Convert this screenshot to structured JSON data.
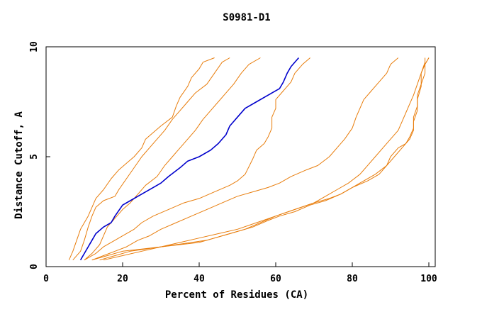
{
  "chart_data": {
    "type": "line",
    "title": "S0981-D1",
    "xlabel": "Percent of Residues (CA)",
    "ylabel": "Distance Cutoff, A",
    "xlim": [
      0,
      100
    ],
    "ylim": [
      0,
      10
    ],
    "xticks": [
      "0",
      "20",
      "40",
      "60",
      "80",
      "100"
    ],
    "yticks": [
      "0",
      "5",
      "10"
    ],
    "grid": false,
    "legend": "none",
    "colors": {
      "highlight": "#0000cc",
      "others": "#e87d0c"
    },
    "series": [
      {
        "highlight": false,
        "points": [
          [
            6,
            0.3
          ],
          [
            7,
            0.7
          ],
          [
            8,
            1.2
          ],
          [
            9,
            1.7
          ],
          [
            10,
            2.0
          ],
          [
            11,
            2.3
          ],
          [
            12,
            2.7
          ],
          [
            13,
            3.1
          ],
          [
            15,
            3.5
          ],
          [
            17,
            4.0
          ],
          [
            19,
            4.4
          ],
          [
            21,
            4.7
          ],
          [
            23,
            5.0
          ],
          [
            25,
            5.4
          ],
          [
            26,
            5.8
          ],
          [
            28,
            6.1
          ],
          [
            30,
            6.4
          ],
          [
            33,
            6.8
          ],
          [
            34,
            7.3
          ],
          [
            35,
            7.7
          ],
          [
            37,
            8.2
          ],
          [
            38,
            8.6
          ],
          [
            40,
            9.0
          ],
          [
            41,
            9.3
          ],
          [
            44,
            9.5
          ]
        ]
      },
      {
        "highlight": false,
        "points": [
          [
            7,
            0.3
          ],
          [
            9,
            0.7
          ],
          [
            10,
            1.2
          ],
          [
            11,
            1.8
          ],
          [
            12,
            2.3
          ],
          [
            13,
            2.7
          ],
          [
            15,
            3.0
          ],
          [
            18,
            3.2
          ],
          [
            19,
            3.5
          ],
          [
            21,
            4.0
          ],
          [
            23,
            4.5
          ],
          [
            25,
            5.0
          ],
          [
            27,
            5.4
          ],
          [
            29,
            5.8
          ],
          [
            31,
            6.2
          ],
          [
            33,
            6.7
          ],
          [
            35,
            7.1
          ],
          [
            37,
            7.5
          ],
          [
            39,
            7.9
          ],
          [
            42,
            8.3
          ],
          [
            44,
            8.8
          ],
          [
            46,
            9.3
          ],
          [
            48,
            9.5
          ]
        ]
      },
      {
        "highlight": false,
        "points": [
          [
            10,
            0.3
          ],
          [
            12,
            0.6
          ],
          [
            14,
            1.0
          ],
          [
            15,
            1.4
          ],
          [
            16,
            1.8
          ],
          [
            18,
            2.2
          ],
          [
            20,
            2.6
          ],
          [
            22,
            2.9
          ],
          [
            24,
            3.3
          ],
          [
            26,
            3.7
          ],
          [
            29,
            4.1
          ],
          [
            31,
            4.6
          ],
          [
            33,
            5.0
          ],
          [
            35,
            5.4
          ],
          [
            37,
            5.8
          ],
          [
            39,
            6.2
          ],
          [
            41,
            6.7
          ],
          [
            43,
            7.1
          ],
          [
            45,
            7.5
          ],
          [
            47,
            7.9
          ],
          [
            49,
            8.3
          ],
          [
            51,
            8.8
          ],
          [
            53,
            9.2
          ],
          [
            56,
            9.5
          ]
        ]
      },
      {
        "highlight": true,
        "points": [
          [
            9,
            0.3
          ],
          [
            10,
            0.6
          ],
          [
            11,
            0.9
          ],
          [
            12,
            1.2
          ],
          [
            13,
            1.5
          ],
          [
            15,
            1.8
          ],
          [
            17,
            2.0
          ],
          [
            18,
            2.3
          ],
          [
            20,
            2.8
          ],
          [
            22,
            3.0
          ],
          [
            25,
            3.3
          ],
          [
            28,
            3.6
          ],
          [
            30,
            3.8
          ],
          [
            32,
            4.1
          ],
          [
            35,
            4.5
          ],
          [
            37,
            4.8
          ],
          [
            40,
            5.0
          ],
          [
            43,
            5.3
          ],
          [
            45,
            5.6
          ],
          [
            47,
            6.0
          ],
          [
            48,
            6.4
          ],
          [
            50,
            6.8
          ],
          [
            52,
            7.2
          ],
          [
            55,
            7.5
          ],
          [
            58,
            7.8
          ],
          [
            61,
            8.1
          ],
          [
            62,
            8.4
          ],
          [
            63,
            8.8
          ],
          [
            64,
            9.1
          ],
          [
            66,
            9.5
          ]
        ]
      },
      {
        "highlight": false,
        "points": [
          [
            10,
            0.3
          ],
          [
            13,
            0.6
          ],
          [
            15,
            0.9
          ],
          [
            18,
            1.2
          ],
          [
            20,
            1.4
          ],
          [
            23,
            1.7
          ],
          [
            25,
            2.0
          ],
          [
            28,
            2.3
          ],
          [
            32,
            2.6
          ],
          [
            36,
            2.9
          ],
          [
            40,
            3.1
          ],
          [
            44,
            3.4
          ],
          [
            48,
            3.7
          ],
          [
            50,
            3.9
          ],
          [
            52,
            4.2
          ],
          [
            54,
            4.9
          ],
          [
            55,
            5.3
          ],
          [
            57,
            5.6
          ],
          [
            58,
            5.9
          ],
          [
            59,
            6.3
          ],
          [
            59,
            6.8
          ],
          [
            60,
            7.2
          ],
          [
            60,
            7.6
          ],
          [
            62,
            8.0
          ],
          [
            64,
            8.4
          ],
          [
            65,
            8.8
          ],
          [
            67,
            9.2
          ],
          [
            69,
            9.5
          ]
        ]
      },
      {
        "highlight": false,
        "points": [
          [
            12,
            0.3
          ],
          [
            15,
            0.5
          ],
          [
            18,
            0.7
          ],
          [
            21,
            0.9
          ],
          [
            24,
            1.2
          ],
          [
            27,
            1.4
          ],
          [
            30,
            1.7
          ],
          [
            34,
            2.0
          ],
          [
            38,
            2.3
          ],
          [
            42,
            2.6
          ],
          [
            46,
            2.9
          ],
          [
            50,
            3.2
          ],
          [
            54,
            3.4
          ],
          [
            58,
            3.6
          ],
          [
            61,
            3.8
          ],
          [
            64,
            4.1
          ],
          [
            68,
            4.4
          ],
          [
            71,
            4.6
          ],
          [
            74,
            5.0
          ],
          [
            76,
            5.4
          ],
          [
            78,
            5.8
          ],
          [
            80,
            6.3
          ],
          [
            81,
            6.8
          ],
          [
            82,
            7.2
          ],
          [
            83,
            7.6
          ],
          [
            85,
            8.0
          ],
          [
            87,
            8.4
          ],
          [
            89,
            8.8
          ],
          [
            90,
            9.2
          ],
          [
            92,
            9.5
          ]
        ]
      },
      {
        "highlight": false,
        "points": [
          [
            15,
            0.3
          ],
          [
            20,
            0.5
          ],
          [
            25,
            0.7
          ],
          [
            30,
            0.9
          ],
          [
            35,
            1.1
          ],
          [
            40,
            1.3
          ],
          [
            45,
            1.5
          ],
          [
            50,
            1.7
          ],
          [
            55,
            2.0
          ],
          [
            60,
            2.3
          ],
          [
            65,
            2.6
          ],
          [
            70,
            2.9
          ],
          [
            73,
            3.2
          ],
          [
            76,
            3.5
          ],
          [
            79,
            3.8
          ],
          [
            82,
            4.2
          ],
          [
            84,
            4.6
          ],
          [
            86,
            5.0
          ],
          [
            88,
            5.4
          ],
          [
            90,
            5.8
          ],
          [
            92,
            6.2
          ],
          [
            93,
            6.6
          ],
          [
            94,
            7.0
          ],
          [
            95,
            7.4
          ],
          [
            96,
            7.8
          ],
          [
            97,
            8.3
          ],
          [
            98,
            8.8
          ],
          [
            99,
            9.2
          ],
          [
            100,
            9.5
          ]
        ]
      },
      {
        "highlight": false,
        "points": [
          [
            12,
            0.3
          ],
          [
            16,
            0.5
          ],
          [
            20,
            0.7
          ],
          [
            25,
            0.8
          ],
          [
            30,
            0.9
          ],
          [
            35,
            1.0
          ],
          [
            40,
            1.1
          ],
          [
            44,
            1.3
          ],
          [
            48,
            1.5
          ],
          [
            52,
            1.7
          ],
          [
            56,
            2.0
          ],
          [
            60,
            2.3
          ],
          [
            65,
            2.6
          ],
          [
            70,
            2.9
          ],
          [
            74,
            3.1
          ],
          [
            77,
            3.3
          ],
          [
            80,
            3.6
          ],
          [
            84,
            3.9
          ],
          [
            87,
            4.2
          ],
          [
            89,
            4.6
          ],
          [
            90,
            5.0
          ],
          [
            92,
            5.4
          ],
          [
            94,
            5.6
          ],
          [
            95,
            5.9
          ],
          [
            96,
            6.3
          ],
          [
            96,
            6.8
          ],
          [
            97,
            7.3
          ],
          [
            97,
            7.8
          ],
          [
            98,
            8.3
          ],
          [
            99,
            8.8
          ],
          [
            99,
            9.2
          ],
          [
            100,
            9.5
          ]
        ]
      },
      {
        "highlight": false,
        "points": [
          [
            14,
            0.3
          ],
          [
            18,
            0.5
          ],
          [
            22,
            0.7
          ],
          [
            26,
            0.8
          ],
          [
            30,
            0.9
          ],
          [
            34,
            1.0
          ],
          [
            38,
            1.1
          ],
          [
            42,
            1.2
          ],
          [
            46,
            1.4
          ],
          [
            50,
            1.6
          ],
          [
            54,
            1.8
          ],
          [
            58,
            2.1
          ],
          [
            61,
            2.3
          ],
          [
            65,
            2.5
          ],
          [
            69,
            2.8
          ],
          [
            73,
            3.0
          ],
          [
            77,
            3.3
          ],
          [
            80,
            3.6
          ],
          [
            83,
            3.9
          ],
          [
            86,
            4.2
          ],
          [
            89,
            4.6
          ],
          [
            91,
            5.0
          ],
          [
            93,
            5.4
          ],
          [
            95,
            5.8
          ],
          [
            96,
            6.2
          ],
          [
            96,
            6.6
          ],
          [
            97,
            7.1
          ],
          [
            97,
            7.6
          ],
          [
            98,
            8.2
          ],
          [
            98,
            8.8
          ],
          [
            99,
            9.3
          ],
          [
            99,
            9.5
          ]
        ]
      }
    ]
  }
}
